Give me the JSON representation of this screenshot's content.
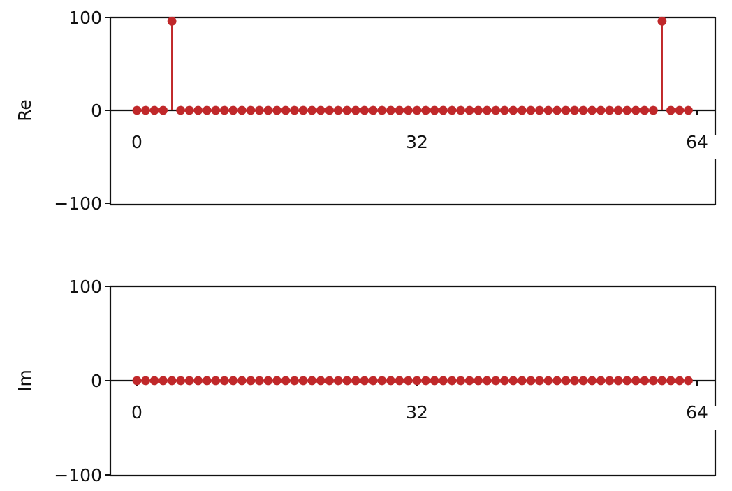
{
  "chart_data": [
    {
      "type": "stem",
      "ylabel": "Re",
      "xlim": [
        0,
        64
      ],
      "ylim": [
        -100,
        100
      ],
      "xticks": [
        0,
        32,
        64
      ],
      "xtick_labels": [
        "0",
        "32",
        "64"
      ],
      "yticks": [
        100,
        0,
        -100
      ],
      "ytick_labels": [
        "100",
        "0",
        "−100"
      ],
      "grid": false,
      "color": "#c0282a",
      "x": [
        0,
        1,
        2,
        3,
        4,
        5,
        6,
        7,
        8,
        9,
        10,
        11,
        12,
        13,
        14,
        15,
        16,
        17,
        18,
        19,
        20,
        21,
        22,
        23,
        24,
        25,
        26,
        27,
        28,
        29,
        30,
        31,
        32,
        33,
        34,
        35,
        36,
        37,
        38,
        39,
        40,
        41,
        42,
        43,
        44,
        45,
        46,
        47,
        48,
        49,
        50,
        51,
        52,
        53,
        54,
        55,
        56,
        57,
        58,
        59,
        60,
        61,
        62,
        63
      ],
      "values": [
        0,
        0,
        0,
        0,
        96,
        0,
        0,
        0,
        0,
        0,
        0,
        0,
        0,
        0,
        0,
        0,
        0,
        0,
        0,
        0,
        0,
        0,
        0,
        0,
        0,
        0,
        0,
        0,
        0,
        0,
        0,
        0,
        0,
        0,
        0,
        0,
        0,
        0,
        0,
        0,
        0,
        0,
        0,
        0,
        0,
        0,
        0,
        0,
        0,
        0,
        0,
        0,
        0,
        0,
        0,
        0,
        0,
        0,
        0,
        0,
        96,
        0,
        0,
        0
      ]
    },
    {
      "type": "stem",
      "ylabel": "Im",
      "xlim": [
        0,
        64
      ],
      "ylim": [
        -100,
        100
      ],
      "xticks": [
        0,
        32,
        64
      ],
      "xtick_labels": [
        "0",
        "32",
        "64"
      ],
      "yticks": [
        100,
        0,
        -100
      ],
      "ytick_labels": [
        "100",
        "0",
        "−100"
      ],
      "grid": false,
      "color": "#c0282a",
      "x": [
        0,
        1,
        2,
        3,
        4,
        5,
        6,
        7,
        8,
        9,
        10,
        11,
        12,
        13,
        14,
        15,
        16,
        17,
        18,
        19,
        20,
        21,
        22,
        23,
        24,
        25,
        26,
        27,
        28,
        29,
        30,
        31,
        32,
        33,
        34,
        35,
        36,
        37,
        38,
        39,
        40,
        41,
        42,
        43,
        44,
        45,
        46,
        47,
        48,
        49,
        50,
        51,
        52,
        53,
        54,
        55,
        56,
        57,
        58,
        59,
        60,
        61,
        62,
        63
      ],
      "values": [
        0,
        0,
        0,
        0,
        0,
        0,
        0,
        0,
        0,
        0,
        0,
        0,
        0,
        0,
        0,
        0,
        0,
        0,
        0,
        0,
        0,
        0,
        0,
        0,
        0,
        0,
        0,
        0,
        0,
        0,
        0,
        0,
        0,
        0,
        0,
        0,
        0,
        0,
        0,
        0,
        0,
        0,
        0,
        0,
        0,
        0,
        0,
        0,
        0,
        0,
        0,
        0,
        0,
        0,
        0,
        0,
        0,
        0,
        0,
        0,
        0,
        0,
        0,
        0
      ]
    }
  ]
}
